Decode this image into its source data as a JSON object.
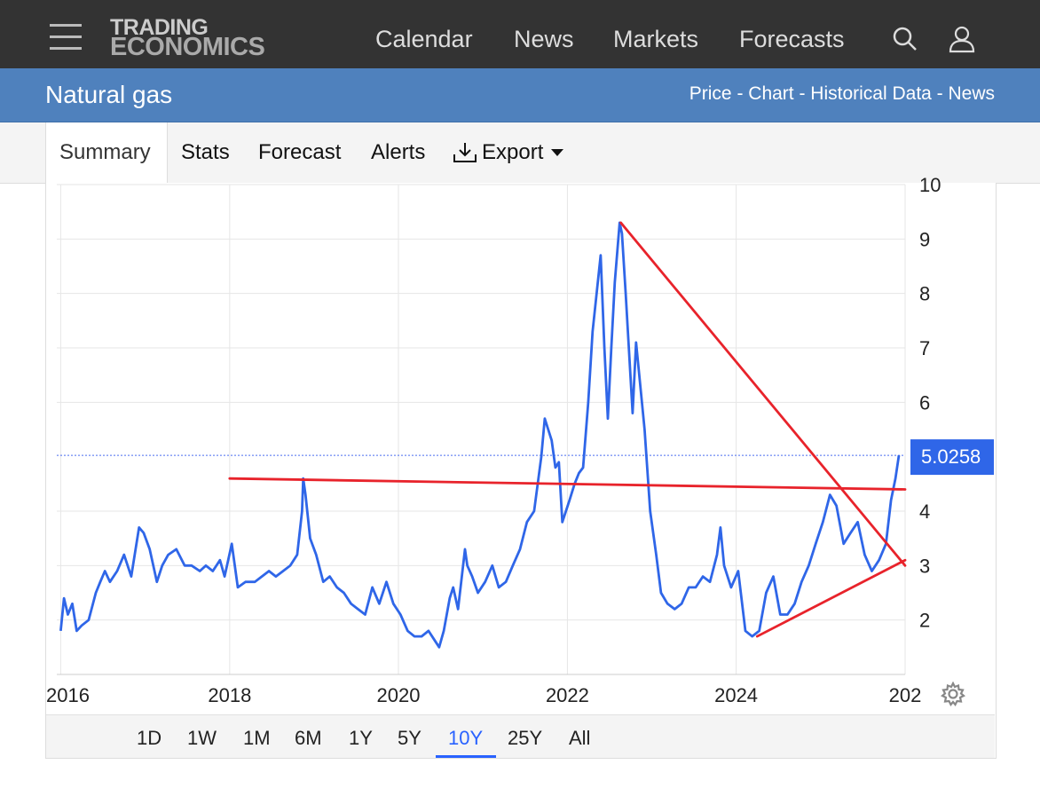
{
  "header": {
    "logo_line1": "TRADING",
    "logo_line2": "ECONOMICS",
    "nav": [
      "Calendar",
      "News",
      "Markets",
      "Forecasts"
    ],
    "icons": [
      "menu-icon",
      "search-icon",
      "user-icon"
    ]
  },
  "title_bar": {
    "title": "Natural gas",
    "links": "Price - Chart - Historical Data - News"
  },
  "tabs": {
    "summary": "Summary",
    "stats": "Stats",
    "forecast": "Forecast",
    "alerts": "Alerts",
    "export": "Export"
  },
  "range_buttons": [
    "1D",
    "1W",
    "1M",
    "6M",
    "1Y",
    "5Y",
    "10Y",
    "25Y",
    "All"
  ],
  "range_selected": "10Y",
  "chart_data": {
    "type": "line",
    "title": "",
    "xlabel": "",
    "ylabel": "",
    "x_tick_labels": [
      "2016",
      "2018",
      "2020",
      "2022",
      "2024",
      "202"
    ],
    "y_tick_labels": [
      "10",
      "9",
      "8",
      "7",
      "6",
      "4",
      "3",
      "2"
    ],
    "ylim": [
      1,
      10
    ],
    "grid": true,
    "last_value_label": "5.0258",
    "last_value": 5.0258,
    "colors": {
      "series": "#2f66e8",
      "trendlines": "#e8232b",
      "badge": "#2f66e8"
    },
    "series": [
      {
        "values_by_date": [
          [
            "2016-01-01",
            1.8
          ],
          [
            "2016-01-15",
            2.4
          ],
          [
            "2016-02-01",
            2.1
          ],
          [
            "2016-02-20",
            2.3
          ],
          [
            "2016-03-10",
            1.8
          ],
          [
            "2016-04-01",
            1.9
          ],
          [
            "2016-05-01",
            2.0
          ],
          [
            "2016-06-01",
            2.5
          ],
          [
            "2016-06-20",
            2.7
          ],
          [
            "2016-07-10",
            2.9
          ],
          [
            "2016-08-01",
            2.7
          ],
          [
            "2016-09-01",
            2.9
          ],
          [
            "2016-10-01",
            3.2
          ],
          [
            "2016-11-01",
            2.8
          ],
          [
            "2016-12-05",
            3.7
          ],
          [
            "2016-12-25",
            3.6
          ],
          [
            "2017-01-20",
            3.3
          ],
          [
            "2017-02-20",
            2.7
          ],
          [
            "2017-03-15",
            3.0
          ],
          [
            "2017-04-10",
            3.2
          ],
          [
            "2017-05-15",
            3.3
          ],
          [
            "2017-06-20",
            3.0
          ],
          [
            "2017-07-20",
            3.0
          ],
          [
            "2017-08-25",
            2.9
          ],
          [
            "2017-09-20",
            3.0
          ],
          [
            "2017-10-20",
            2.9
          ],
          [
            "2017-11-20",
            3.1
          ],
          [
            "2017-12-10",
            2.8
          ],
          [
            "2018-01-10",
            3.4
          ],
          [
            "2018-02-05",
            2.6
          ],
          [
            "2018-03-10",
            2.7
          ],
          [
            "2018-04-20",
            2.7
          ],
          [
            "2018-05-20",
            2.8
          ],
          [
            "2018-06-20",
            2.9
          ],
          [
            "2018-07-20",
            2.8
          ],
          [
            "2018-08-20",
            2.9
          ],
          [
            "2018-09-20",
            3.0
          ],
          [
            "2018-10-20",
            3.2
          ],
          [
            "2018-11-10",
            4.0
          ],
          [
            "2018-11-15",
            4.6
          ],
          [
            "2018-11-25",
            4.3
          ],
          [
            "2018-12-15",
            3.5
          ],
          [
            "2019-01-10",
            3.2
          ],
          [
            "2019-02-10",
            2.7
          ],
          [
            "2019-03-10",
            2.8
          ],
          [
            "2019-04-10",
            2.6
          ],
          [
            "2019-05-10",
            2.5
          ],
          [
            "2019-06-10",
            2.3
          ],
          [
            "2019-07-10",
            2.2
          ],
          [
            "2019-08-10",
            2.1
          ],
          [
            "2019-09-10",
            2.6
          ],
          [
            "2019-10-10",
            2.3
          ],
          [
            "2019-11-10",
            2.7
          ],
          [
            "2019-12-10",
            2.3
          ],
          [
            "2020-01-10",
            2.1
          ],
          [
            "2020-02-10",
            1.8
          ],
          [
            "2020-03-10",
            1.7
          ],
          [
            "2020-04-10",
            1.7
          ],
          [
            "2020-05-10",
            1.8
          ],
          [
            "2020-06-10",
            1.6
          ],
          [
            "2020-06-25",
            1.5
          ],
          [
            "2020-07-15",
            1.8
          ],
          [
            "2020-08-10",
            2.4
          ],
          [
            "2020-08-25",
            2.6
          ],
          [
            "2020-09-15",
            2.2
          ],
          [
            "2020-10-15",
            3.3
          ],
          [
            "2020-10-25",
            3.0
          ],
          [
            "2020-11-15",
            2.8
          ],
          [
            "2020-12-10",
            2.5
          ],
          [
            "2021-01-10",
            2.7
          ],
          [
            "2021-02-10",
            3.0
          ],
          [
            "2021-03-10",
            2.6
          ],
          [
            "2021-04-10",
            2.7
          ],
          [
            "2021-05-10",
            3.0
          ],
          [
            "2021-06-10",
            3.3
          ],
          [
            "2021-07-10",
            3.8
          ],
          [
            "2021-08-10",
            4.0
          ],
          [
            "2021-09-10",
            5.0
          ],
          [
            "2021-09-25",
            5.7
          ],
          [
            "2021-10-10",
            5.5
          ],
          [
            "2021-10-25",
            5.3
          ],
          [
            "2021-11-10",
            4.8
          ],
          [
            "2021-11-25",
            4.9
          ],
          [
            "2021-12-10",
            3.8
          ],
          [
            "2022-01-10",
            4.2
          ],
          [
            "2022-02-01",
            4.5
          ],
          [
            "2022-02-20",
            4.7
          ],
          [
            "2022-03-10",
            4.8
          ],
          [
            "2022-04-01",
            6.0
          ],
          [
            "2022-04-20",
            7.3
          ],
          [
            "2022-05-10",
            8.1
          ],
          [
            "2022-05-25",
            8.7
          ],
          [
            "2022-06-10",
            7.0
          ],
          [
            "2022-06-25",
            5.7
          ],
          [
            "2022-07-10",
            7.0
          ],
          [
            "2022-07-25",
            8.2
          ],
          [
            "2022-08-15",
            9.3
          ],
          [
            "2022-08-25",
            9.1
          ],
          [
            "2022-09-10",
            8.0
          ],
          [
            "2022-09-25",
            6.9
          ],
          [
            "2022-10-10",
            5.8
          ],
          [
            "2022-10-25",
            7.1
          ],
          [
            "2022-11-10",
            6.4
          ],
          [
            "2022-12-01",
            5.5
          ],
          [
            "2022-12-25",
            4.0
          ],
          [
            "2023-01-20",
            3.2
          ],
          [
            "2023-02-10",
            2.5
          ],
          [
            "2023-03-10",
            2.3
          ],
          [
            "2023-04-10",
            2.2
          ],
          [
            "2023-05-10",
            2.3
          ],
          [
            "2023-06-10",
            2.6
          ],
          [
            "2023-07-10",
            2.6
          ],
          [
            "2023-08-10",
            2.8
          ],
          [
            "2023-09-10",
            2.7
          ],
          [
            "2023-10-10",
            3.2
          ],
          [
            "2023-10-25",
            3.7
          ],
          [
            "2023-11-10",
            3.0
          ],
          [
            "2023-12-10",
            2.6
          ],
          [
            "2024-01-10",
            2.9
          ],
          [
            "2024-02-10",
            1.8
          ],
          [
            "2024-03-10",
            1.7
          ],
          [
            "2024-04-10",
            1.8
          ],
          [
            "2024-05-10",
            2.5
          ],
          [
            "2024-06-10",
            2.8
          ],
          [
            "2024-07-10",
            2.1
          ],
          [
            "2024-08-10",
            2.1
          ],
          [
            "2024-09-10",
            2.3
          ],
          [
            "2024-10-10",
            2.7
          ],
          [
            "2024-11-10",
            3.0
          ],
          [
            "2024-12-10",
            3.4
          ],
          [
            "2025-01-10",
            3.8
          ],
          [
            "2025-02-10",
            4.3
          ],
          [
            "2025-03-10",
            4.1
          ],
          [
            "2025-04-10",
            3.4
          ],
          [
            "2025-05-10",
            3.6
          ],
          [
            "2025-06-10",
            3.8
          ],
          [
            "2025-07-10",
            3.2
          ],
          [
            "2025-08-10",
            2.9
          ],
          [
            "2025-09-10",
            3.1
          ],
          [
            "2025-10-10",
            3.4
          ],
          [
            "2025-11-01",
            4.2
          ],
          [
            "2025-11-20",
            4.6
          ],
          [
            "2025-12-05",
            5.0258
          ]
        ]
      }
    ],
    "reference_lines": [
      {
        "style": "dotted",
        "y": 5.0258
      },
      {
        "style": "trendline",
        "from": [
          "2018-01-01",
          4.6
        ],
        "to": [
          "2026-01-01",
          4.4
        ]
      },
      {
        "style": "trendline",
        "from": [
          "2022-08-20",
          9.3
        ],
        "to": [
          "2026-01-01",
          3.0
        ]
      },
      {
        "style": "trendline",
        "from": [
          "2024-04-01",
          1.7
        ],
        "to": [
          "2026-01-01",
          3.1
        ]
      }
    ]
  }
}
